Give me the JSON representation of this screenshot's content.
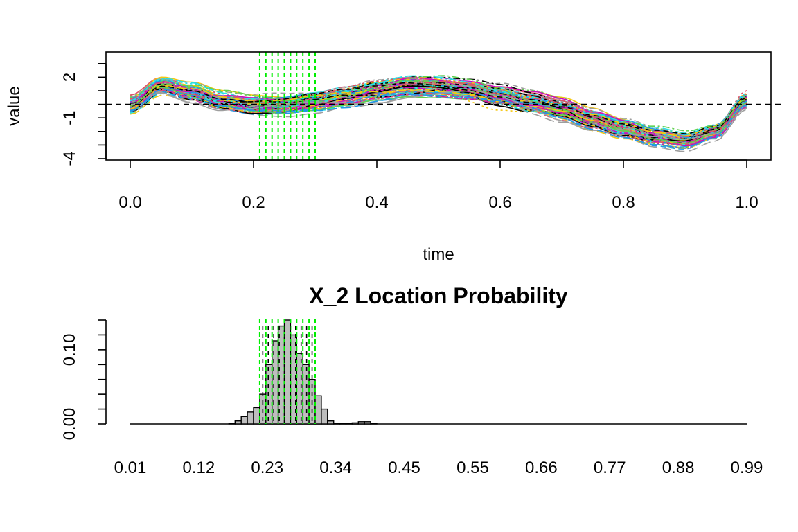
{
  "chart_data": [
    {
      "type": "line",
      "xlabel": "time",
      "ylabel": "value",
      "xlim": [
        0,
        1
      ],
      "ylim": [
        -4,
        3.5
      ],
      "x_ticks": [
        "0.0",
        "0.2",
        "0.4",
        "0.6",
        "0.8",
        "1.0"
      ],
      "y_ticks": [
        "2",
        "-1",
        "-4"
      ],
      "reference_line_y": 0,
      "highlight_interval": [
        0.21,
        0.3
      ],
      "highlight_color": "#00ee00",
      "series_count": 100,
      "series_colors": [
        "#000000",
        "#df536b",
        "#61d04f",
        "#2297e6",
        "#28e2e5",
        "#cd0bbc",
        "#f5c710",
        "#9e9e9e"
      ],
      "mean_curve": {
        "x": [
          0,
          0.05,
          0.1,
          0.15,
          0.2,
          0.25,
          0.3,
          0.35,
          0.4,
          0.45,
          0.5,
          0.55,
          0.6,
          0.65,
          0.7,
          0.75,
          0.8,
          0.85,
          0.9,
          0.95,
          1.0
        ],
        "y": [
          0,
          1.4,
          0.9,
          0.2,
          -0.1,
          -0.1,
          0.2,
          0.6,
          1.0,
          1.3,
          1.2,
          1.0,
          0.6,
          0.1,
          -0.4,
          -1.1,
          -1.8,
          -2.4,
          -2.7,
          -2.0,
          0.3
        ]
      }
    },
    {
      "type": "bar",
      "title": "X_2 Location Probability",
      "ylim": [
        0,
        0.14
      ],
      "y_ticks": [
        "0.00",
        "0.10"
      ],
      "x_tick_labels": [
        "0.01",
        "0.12",
        "0.23",
        "0.34",
        "0.45",
        "0.55",
        "0.66",
        "0.77",
        "0.88",
        "0.99"
      ],
      "bin_width": 0.01,
      "bar_color": "#bebebe",
      "highlight_interval": [
        0.21,
        0.3
      ],
      "highlight_color": "#00ee00",
      "bins": {
        "start": 0.16,
        "values": [
          0.001,
          0.004,
          0.01,
          0.016,
          0.022,
          0.04,
          0.08,
          0.112,
          0.132,
          0.14,
          0.12,
          0.095,
          0.08,
          0.06,
          0.038,
          0.02,
          0.004,
          0.001,
          0.0005,
          0.001,
          0.0015,
          0.003,
          0.003,
          0.001
        ]
      }
    }
  ]
}
